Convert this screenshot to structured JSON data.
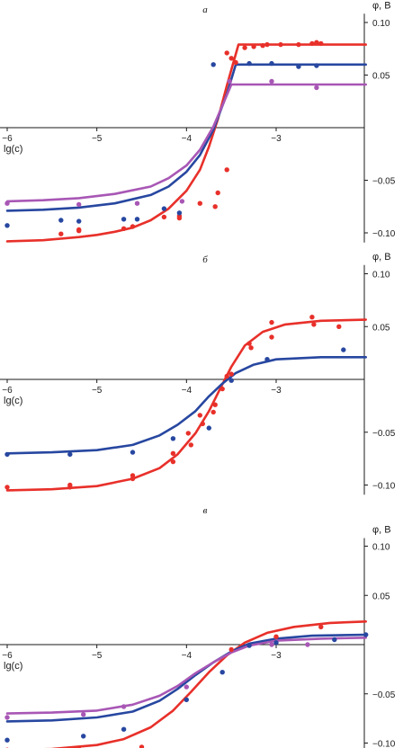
{
  "chart_data": [
    {
      "panel": "а",
      "type": "line",
      "xlabel": "lg(c)",
      "ylabel": "φ, В",
      "xlim": [
        -6.0,
        -2.0
      ],
      "ylim": [
        -0.11,
        0.11
      ],
      "x_ticks": [
        -6,
        -5,
        -4,
        -3
      ],
      "x_tick_labels": [
        "−6",
        "−5",
        "−4",
        "−3"
      ],
      "y_ticks": [
        0.1,
        0.05,
        -0.05,
        -0.1
      ],
      "y_tick_labels": [
        "0.10",
        "0.05",
        "−0.05",
        "−0.10"
      ],
      "series": [
        {
          "color": "#e8302a",
          "curve": [
            [
              -6.0,
              -0.108
            ],
            [
              -5.6,
              -0.107
            ],
            [
              -5.2,
              -0.104
            ],
            [
              -5.0,
              -0.102
            ],
            [
              -4.8,
              -0.099
            ],
            [
              -4.6,
              -0.095
            ],
            [
              -4.4,
              -0.088
            ],
            [
              -4.2,
              -0.077
            ],
            [
              -4.0,
              -0.06
            ],
            [
              -3.85,
              -0.04
            ],
            [
              -3.75,
              -0.018
            ],
            [
              -3.65,
              0.008
            ],
            [
              -3.55,
              0.04
            ],
            [
              -3.42,
              0.079
            ],
            [
              -2.0,
              0.079
            ]
          ],
          "points": [
            [
              -5.4,
              -0.101
            ],
            [
              -5.2,
              -0.098
            ],
            [
              -5.2,
              -0.097
            ],
            [
              -4.7,
              -0.096
            ],
            [
              -4.6,
              -0.094
            ],
            [
              -4.25,
              -0.085
            ],
            [
              -4.08,
              -0.084
            ],
            [
              -4.08,
              -0.086
            ],
            [
              -3.85,
              -0.072
            ],
            [
              -3.68,
              -0.075
            ],
            [
              -3.65,
              -0.062
            ],
            [
              -3.55,
              -0.04
            ],
            [
              -3.55,
              0.071
            ],
            [
              -3.5,
              0.066
            ],
            [
              -3.45,
              0.062
            ],
            [
              -3.35,
              0.076
            ],
            [
              -3.25,
              0.077
            ],
            [
              -3.15,
              0.078
            ],
            [
              -3.1,
              0.079
            ],
            [
              -2.95,
              0.079
            ],
            [
              -2.75,
              0.079
            ],
            [
              -2.6,
              0.08
            ],
            [
              -2.55,
              0.081
            ],
            [
              -2.5,
              0.08
            ]
          ]
        },
        {
          "color": "#2747a0",
          "curve": [
            [
              -6.0,
              -0.079
            ],
            [
              -5.6,
              -0.078
            ],
            [
              -5.2,
              -0.076
            ],
            [
              -4.8,
              -0.072
            ],
            [
              -4.4,
              -0.064
            ],
            [
              -4.2,
              -0.056
            ],
            [
              -4.0,
              -0.042
            ],
            [
              -3.85,
              -0.026
            ],
            [
              -3.7,
              -0.002
            ],
            [
              -3.55,
              0.032
            ],
            [
              -3.45,
              0.06
            ],
            [
              -2.0,
              0.06
            ]
          ],
          "points": [
            [
              -6.0,
              -0.093
            ],
            [
              -5.4,
              -0.088
            ],
            [
              -5.2,
              -0.089
            ],
            [
              -4.7,
              -0.087
            ],
            [
              -4.55,
              -0.087
            ],
            [
              -4.25,
              -0.077
            ],
            [
              -4.08,
              -0.081
            ],
            [
              -3.7,
              0.06
            ],
            [
              -3.3,
              0.061
            ],
            [
              -3.05,
              0.061
            ],
            [
              -2.75,
              0.058
            ],
            [
              -2.55,
              0.059
            ]
          ]
        },
        {
          "color": "#a857b5",
          "curve": [
            [
              -6.0,
              -0.07
            ],
            [
              -5.6,
              -0.069
            ],
            [
              -5.2,
              -0.067
            ],
            [
              -4.8,
              -0.063
            ],
            [
              -4.4,
              -0.056
            ],
            [
              -4.2,
              -0.048
            ],
            [
              -4.0,
              -0.036
            ],
            [
              -3.85,
              -0.021
            ],
            [
              -3.7,
              0.001
            ],
            [
              -3.58,
              0.025
            ],
            [
              -3.5,
              0.041
            ],
            [
              -2.0,
              0.041
            ]
          ],
          "points": [
            [
              -6.0,
              -0.072
            ],
            [
              -5.2,
              -0.073
            ],
            [
              -4.55,
              -0.072
            ],
            [
              -4.05,
              -0.07
            ],
            [
              -3.52,
              0.044
            ],
            [
              -3.05,
              0.044
            ],
            [
              -2.55,
              0.038
            ]
          ]
        }
      ]
    },
    {
      "panel": "б",
      "type": "line",
      "xlabel": "lg(c)",
      "ylabel": "φ, В",
      "xlim": [
        -6.0,
        -2.0
      ],
      "ylim": [
        -0.11,
        0.11
      ],
      "x_ticks": [
        -6,
        -5,
        -4,
        -3
      ],
      "x_tick_labels": [
        "−6",
        "−5",
        "−4",
        "−3"
      ],
      "y_ticks": [
        0.1,
        0.05,
        -0.05,
        -0.1
      ],
      "y_tick_labels": [
        "0.10",
        "0.05",
        "−0.05",
        "−0.10"
      ],
      "series": [
        {
          "color": "#e8302a",
          "curve": [
            [
              -6.0,
              -0.105
            ],
            [
              -5.5,
              -0.104
            ],
            [
              -5.0,
              -0.101
            ],
            [
              -4.6,
              -0.094
            ],
            [
              -4.3,
              -0.084
            ],
            [
              -4.1,
              -0.071
            ],
            [
              -3.9,
              -0.051
            ],
            [
              -3.75,
              -0.03
            ],
            [
              -3.62,
              -0.008
            ],
            [
              -3.5,
              0.012
            ],
            [
              -3.35,
              0.032
            ],
            [
              -3.15,
              0.045
            ],
            [
              -2.9,
              0.052
            ],
            [
              -2.5,
              0.0555
            ],
            [
              -2.0,
              0.0565
            ]
          ],
          "points": [
            [
              -6.0,
              -0.102
            ],
            [
              -5.3,
              -0.1
            ],
            [
              -5.3,
              -0.102
            ],
            [
              -4.6,
              -0.091
            ],
            [
              -4.6,
              -0.094
            ],
            [
              -4.15,
              -0.07
            ],
            [
              -4.15,
              -0.078
            ],
            [
              -3.98,
              -0.051
            ],
            [
              -3.95,
              -0.062
            ],
            [
              -3.85,
              -0.034
            ],
            [
              -3.82,
              -0.042
            ],
            [
              -3.7,
              -0.031
            ],
            [
              -3.68,
              -0.024
            ],
            [
              -3.6,
              -0.009
            ],
            [
              -3.55,
              0.003
            ],
            [
              -3.5,
              0.005
            ],
            [
              -3.3,
              0.034
            ],
            [
              -3.28,
              0.03
            ],
            [
              -3.05,
              0.054
            ],
            [
              -3.05,
              0.04
            ],
            [
              -2.6,
              0.059
            ],
            [
              -2.58,
              0.052
            ],
            [
              -2.3,
              0.05
            ]
          ]
        },
        {
          "color": "#2747a0",
          "curve": [
            [
              -6.0,
              -0.07
            ],
            [
              -5.5,
              -0.069
            ],
            [
              -5.0,
              -0.067
            ],
            [
              -4.6,
              -0.062
            ],
            [
              -4.3,
              -0.053
            ],
            [
              -4.1,
              -0.043
            ],
            [
              -3.9,
              -0.03
            ],
            [
              -3.75,
              -0.016
            ],
            [
              -3.6,
              -0.004
            ],
            [
              -3.45,
              0.006
            ],
            [
              -3.25,
              0.014
            ],
            [
              -3.0,
              0.019
            ],
            [
              -2.5,
              0.021
            ],
            [
              -2.0,
              0.021
            ]
          ],
          "points": [
            [
              -6.0,
              -0.071
            ],
            [
              -5.3,
              -0.071
            ],
            [
              -4.6,
              -0.069
            ],
            [
              -4.15,
              -0.056
            ],
            [
              -3.75,
              -0.046
            ],
            [
              -3.5,
              -0.001
            ],
            [
              -3.1,
              0.019
            ],
            [
              -2.25,
              0.028
            ]
          ]
        }
      ]
    },
    {
      "panel": "в",
      "type": "line",
      "xlabel": "lg(c)",
      "ylabel": "φ, В",
      "xlim": [
        -6.0,
        -2.0
      ],
      "ylim": [
        -0.11,
        0.11
      ],
      "x_ticks": [
        -6,
        -5,
        -4,
        -3
      ],
      "x_tick_labels": [
        "−6",
        "−5",
        "−4",
        "−3"
      ],
      "y_ticks": [
        0.1,
        0.05,
        -0.05,
        -0.1
      ],
      "y_tick_labels": [
        "0.10",
        "0.05",
        "−0.05",
        "−0.10"
      ],
      "series": [
        {
          "color": "#e8302a",
          "curve": [
            [
              -6.0,
              -0.107
            ],
            [
              -5.5,
              -0.106
            ],
            [
              -5.0,
              -0.102
            ],
            [
              -4.7,
              -0.096
            ],
            [
              -4.4,
              -0.084
            ],
            [
              -4.15,
              -0.067
            ],
            [
              -3.95,
              -0.048
            ],
            [
              -3.75,
              -0.028
            ],
            [
              -3.55,
              -0.011
            ],
            [
              -3.35,
              0.002
            ],
            [
              -3.1,
              0.012
            ],
            [
              -2.8,
              0.018
            ],
            [
              -2.4,
              0.022
            ],
            [
              -2.0,
              0.0235
            ]
          ],
          "points": [
            [
              -6.0,
              -0.107
            ],
            [
              -5.2,
              -0.106
            ],
            [
              -4.5,
              -0.104
            ],
            [
              -3.5,
              -0.005
            ],
            [
              -3.0,
              0.008
            ],
            [
              -2.5,
              0.018
            ]
          ]
        },
        {
          "color": "#2747a0",
          "curve": [
            [
              -6.0,
              -0.078
            ],
            [
              -5.5,
              -0.077
            ],
            [
              -5.0,
              -0.074
            ],
            [
              -4.6,
              -0.068
            ],
            [
              -4.3,
              -0.057
            ],
            [
              -4.1,
              -0.045
            ],
            [
              -3.9,
              -0.031
            ],
            [
              -3.7,
              -0.018
            ],
            [
              -3.5,
              -0.007
            ],
            [
              -3.3,
              0.001
            ],
            [
              -3.0,
              0.006
            ],
            [
              -2.6,
              0.009
            ],
            [
              -2.0,
              0.01
            ]
          ],
          "points": [
            [
              -6.0,
              -0.097
            ],
            [
              -5.15,
              -0.093
            ],
            [
              -4.7,
              -0.086
            ],
            [
              -4.0,
              -0.056
            ],
            [
              -3.6,
              -0.028
            ],
            [
              -3.3,
              -0.001
            ],
            [
              -3.0,
              0.002
            ],
            [
              -2.35,
              0.005
            ],
            [
              -2.0,
              0.01
            ]
          ]
        },
        {
          "color": "#a857b5",
          "curve": [
            [
              -6.0,
              -0.07
            ],
            [
              -5.5,
              -0.069
            ],
            [
              -5.0,
              -0.067
            ],
            [
              -4.6,
              -0.061
            ],
            [
              -4.3,
              -0.052
            ],
            [
              -4.1,
              -0.042
            ],
            [
              -3.9,
              -0.029
            ],
            [
              -3.7,
              -0.018
            ],
            [
              -3.5,
              -0.008
            ],
            [
              -3.3,
              -0.001
            ],
            [
              -3.0,
              0.004
            ],
            [
              -2.5,
              0.006
            ],
            [
              -2.0,
              0.007
            ]
          ],
          "points": [
            [
              -6.0,
              -0.074
            ],
            [
              -5.15,
              -0.071
            ],
            [
              -4.7,
              -0.063
            ],
            [
              -4.0,
              -0.043
            ],
            [
              -3.05,
              0.0
            ],
            [
              -2.65,
              0.0
            ]
          ]
        }
      ]
    }
  ]
}
